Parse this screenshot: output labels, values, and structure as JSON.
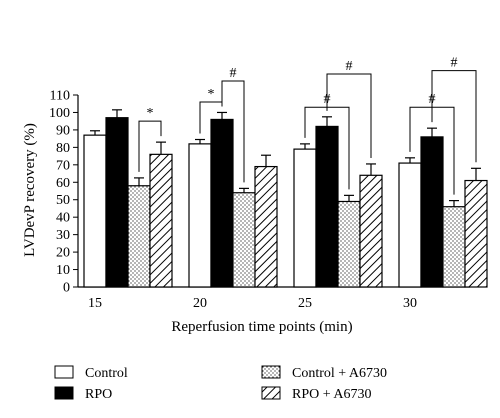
{
  "chart_data": {
    "type": "bar",
    "title": "",
    "xlabel": "Reperfusion time points (min)",
    "ylabel": "LVDevP recovery (%)",
    "ylim": [
      0,
      110
    ],
    "yticks": [
      0,
      10,
      20,
      30,
      40,
      50,
      60,
      70,
      80,
      90,
      100,
      110
    ],
    "categories": [
      "15",
      "20",
      "25",
      "30"
    ],
    "series": [
      {
        "name": "Control",
        "pattern": "white",
        "values": [
          87,
          82,
          79,
          71
        ],
        "errors": [
          2.5,
          2.5,
          3,
          3
        ]
      },
      {
        "name": "RPO",
        "pattern": "black",
        "values": [
          97,
          96,
          92,
          86
        ],
        "errors": [
          4.5,
          4,
          5.5,
          5
        ]
      },
      {
        "name": "Control + A6730",
        "pattern": "dots",
        "values": [
          58,
          54,
          49,
          46
        ],
        "errors": [
          4.5,
          2.5,
          3.5,
          3.5
        ]
      },
      {
        "name": "RPO + A6730",
        "pattern": "hatch",
        "values": [
          76,
          69,
          64,
          61
        ],
        "errors": [
          7,
          6.5,
          6.5,
          7
        ]
      }
    ],
    "annotations": [
      {
        "group": "15",
        "from_series": 2,
        "to_series": 3,
        "symbol": "*",
        "bracket_y": 95
      },
      {
        "group": "20",
        "from_series": 0,
        "to_series": 1,
        "symbol": "*",
        "bracket_y": 106
      },
      {
        "group": "20",
        "from_series": 1,
        "to_series": 2,
        "symbol": "#",
        "bracket_y": 118
      },
      {
        "group": "25",
        "from_series": 0,
        "to_series": 2,
        "symbol": "#",
        "bracket_y": 103
      },
      {
        "group": "25",
        "from_series": 1,
        "to_series": 3,
        "symbol": "#",
        "bracket_y": 122
      },
      {
        "group": "30",
        "from_series": 0,
        "to_series": 2,
        "symbol": "#",
        "bracket_y": 103
      },
      {
        "group": "30",
        "from_series": 1,
        "to_series": 3,
        "symbol": "#",
        "bracket_y": 124
      }
    ],
    "legend_placement": "bottom",
    "grid": false
  }
}
